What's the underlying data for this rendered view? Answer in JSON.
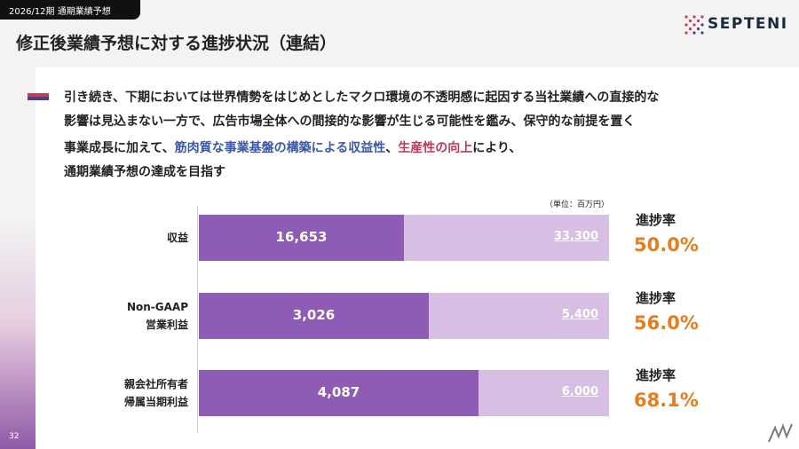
{
  "header": {
    "tab_label": "2026/12期 通期業績予想",
    "title": "修正後業績予想に対する進捗状況（連結）",
    "logo_text": "SEPTENI"
  },
  "body_text": {
    "line1": "引き続き、下期においては世界情勢をはじめとしたマクロ環境の不透明感に起因する当社業績への直接的な",
    "line2": "影響は見込まない一方で、広告市場全体への間接的な影響が生じる可能性を鑑み、保守的な前提を置く",
    "line3_a": "事業成長に加えて、",
    "line3_b": "筋肉質な事業基盤の構築による収益性",
    "line3_c": "、",
    "line3_d": "生産性の向上",
    "line3_e": "により、",
    "line4": "通期業績予想の達成を目指す"
  },
  "chart_data": {
    "type": "bar",
    "orientation": "horizontal",
    "unit_label": "（単位：百万円）",
    "categories": [
      "収益",
      "Non-GAAP\n営業利益",
      "親会社所有者\n帰属当期利益"
    ],
    "series": [
      {
        "name": "actual",
        "values": [
          16653,
          3026,
          4087
        ],
        "color": "#8e5cb5"
      },
      {
        "name": "forecast",
        "values": [
          33300,
          5400,
          6000
        ],
        "color": "#d6bfe3"
      }
    ],
    "value_labels": [
      "16,653",
      "3,026",
      "4,087"
    ],
    "total_labels": [
      "33,300",
      "5,400",
      "6,000"
    ],
    "progress": {
      "label": "進捗率",
      "values": [
        "50.0%",
        "56.0%",
        "68.1%"
      ],
      "color": "#e57d1f"
    }
  },
  "rows": [
    {
      "label_line1": "収益",
      "label_line2": ""
    },
    {
      "label_line1": "Non-GAAP",
      "label_line2": "営業利益"
    },
    {
      "label_line1": "親会社所有者",
      "label_line2": "帰属当期利益"
    }
  ],
  "footer": {
    "page_number": "32"
  }
}
